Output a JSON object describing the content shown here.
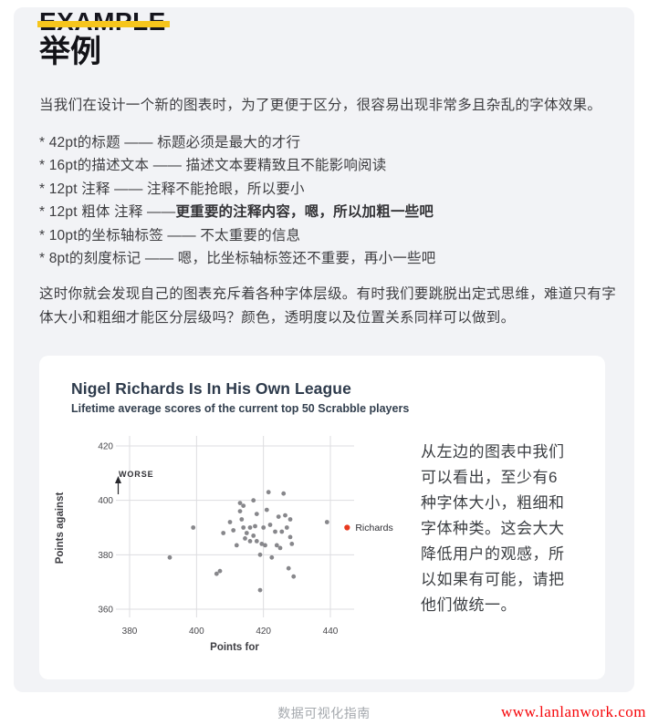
{
  "header": {
    "eyebrow": "EXAMPLE",
    "title": "举例",
    "accent_color": "#f6c51c"
  },
  "intro": "当我们在设计一个新的图表时，为了更便于区分，很容易出现非常多且杂乱的字体效果。",
  "list": {
    "items": [
      {
        "text": "* 42pt的标题 —— 标题必须是最大的才行",
        "bold_text": ""
      },
      {
        "text": "* 16pt的描述文本 —— 描述文本要精致且不能影响阅读",
        "bold_text": ""
      },
      {
        "text": "* 12pt 注释 —— 注释不能抢眼，所以要小",
        "bold_text": ""
      },
      {
        "text": "* 12pt 粗体 注释 ——",
        "bold_text": "更重要的注释内容，嗯，所以加粗一些吧"
      },
      {
        "text": "* 10pt的坐标轴标签 —— 不太重要的信息",
        "bold_text": ""
      },
      {
        "text": "* 8pt的刻度标记 —— 嗯，比坐标轴标签还不重要，再小一些吧",
        "bold_text": ""
      }
    ]
  },
  "closing": "这时你就会发现自己的图表充斥着各种字体层级。有时我们要跳脱出定式思维，难道只有字体大小和粗细才能区分层级吗？颜色，透明度以及位置关系同样可以做到。",
  "card": {
    "note": "从左边的图表中我们可以看出，至少有6种字体大小，粗细和字体种类。这会大大降低用户的观感，所以如果有可能，请把他们做统一。"
  },
  "chart_data": {
    "type": "scatter",
    "title": "Nigel Richards Is In His Own League",
    "subtitle": "Lifetime average scores of the current top 50 Scrabble players",
    "xlabel": "Points for",
    "ylabel": "Points against",
    "annotation": "WORSE",
    "grid": true,
    "legend_position": "none",
    "x_ticks": [
      380,
      400,
      420,
      440
    ],
    "y_ticks": [
      420,
      400,
      380,
      360
    ],
    "xlim": [
      369,
      447
    ],
    "ylim": [
      354,
      423
    ],
    "colors": {
      "grid": "#dddde0",
      "dots": "#87878b",
      "highlight": "#e8391f"
    },
    "series": [
      {
        "name": "top-50-players",
        "color": "#87878b",
        "points": [
          [
            392,
            379
          ],
          [
            399,
            390
          ],
          [
            406,
            373
          ],
          [
            407,
            374
          ],
          [
            408,
            388
          ],
          [
            410,
            392
          ],
          [
            411,
            389
          ],
          [
            412,
            383.5
          ],
          [
            413,
            399
          ],
          [
            413,
            396
          ],
          [
            413.5,
            393
          ],
          [
            414,
            398
          ],
          [
            414,
            390
          ],
          [
            414.5,
            386
          ],
          [
            415,
            388
          ],
          [
            416,
            390
          ],
          [
            416,
            385
          ],
          [
            417,
            400
          ],
          [
            417,
            387
          ],
          [
            417.5,
            390.5
          ],
          [
            418,
            385
          ],
          [
            418,
            395
          ],
          [
            419,
            380
          ],
          [
            419,
            367
          ],
          [
            419.5,
            384
          ],
          [
            420,
            390
          ],
          [
            420.5,
            383.5
          ],
          [
            421,
            396.5
          ],
          [
            421.5,
            403
          ],
          [
            422,
            391
          ],
          [
            422.5,
            379
          ],
          [
            423.5,
            388.5
          ],
          [
            424,
            383.5
          ],
          [
            424.5,
            394
          ],
          [
            425,
            382.5
          ],
          [
            425.5,
            388.5
          ],
          [
            426,
            402.5
          ],
          [
            426.5,
            394.5
          ],
          [
            427,
            390
          ],
          [
            427.5,
            375
          ],
          [
            428,
            393
          ],
          [
            428,
            386.5
          ],
          [
            428.5,
            384
          ],
          [
            429,
            372
          ],
          [
            439,
            392
          ]
        ]
      },
      {
        "name": "richards",
        "label": "Richards",
        "color": "#e8391f",
        "points": [
          [
            445,
            390
          ]
        ]
      }
    ]
  },
  "footer": {
    "label": "数据可视化指南",
    "watermark": "www.lanlanwork.com"
  }
}
